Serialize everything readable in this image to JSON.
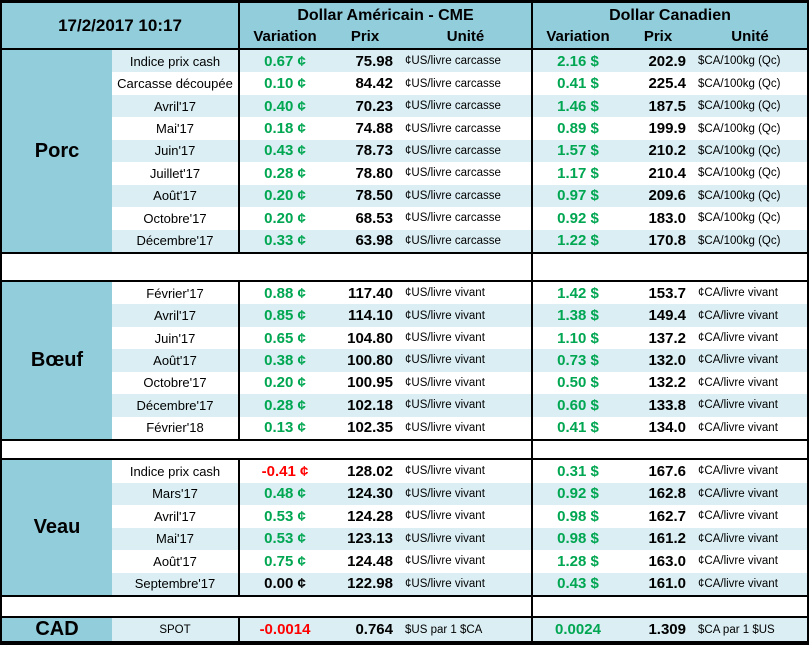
{
  "header": {
    "date": "17/2/2017 10:17",
    "us": {
      "title": "Dollar Américain - CME",
      "variation": "Variation",
      "prix": "Prix",
      "unite": "Unité"
    },
    "ca": {
      "title": "Dollar Canadien",
      "variation": "Variation",
      "prix": "Prix",
      "unite": "Unité"
    }
  },
  "palette": {
    "header_bg": "#92CDDC",
    "stripe_bg": "#DAEEF3",
    "positive_green": "#00A651",
    "negative_red": "#FF0000",
    "neutral_black": "#000000"
  },
  "sections": [
    {
      "category": "Porc",
      "rows": [
        {
          "label": "Indice prix cash",
          "us_variation": "0.67 ¢",
          "us_variation_color": "#00A651",
          "us_price": "75.98",
          "us_unit": "¢US/livre carcasse",
          "ca_variation": "2.16 $",
          "ca_variation_color": "#00A651",
          "ca_price": "202.9",
          "ca_unit": "$CA/100kg (Qc)"
        },
        {
          "label": "Carcasse découpée",
          "us_variation": "0.10 ¢",
          "us_variation_color": "#00A651",
          "us_price": "84.42",
          "us_unit": "¢US/livre carcasse",
          "ca_variation": "0.41 $",
          "ca_variation_color": "#00A651",
          "ca_price": "225.4",
          "ca_unit": "$CA/100kg (Qc)"
        },
        {
          "label": "Avril'17",
          "us_variation": "0.40 ¢",
          "us_variation_color": "#00A651",
          "us_price": "70.23",
          "us_unit": "¢US/livre carcasse",
          "ca_variation": "1.46 $",
          "ca_variation_color": "#00A651",
          "ca_price": "187.5",
          "ca_unit": "$CA/100kg (Qc)"
        },
        {
          "label": "Mai'17",
          "us_variation": "0.18 ¢",
          "us_variation_color": "#00A651",
          "us_price": "74.88",
          "us_unit": "¢US/livre carcasse",
          "ca_variation": "0.89 $",
          "ca_variation_color": "#00A651",
          "ca_price": "199.9",
          "ca_unit": "$CA/100kg (Qc)"
        },
        {
          "label": "Juin'17",
          "us_variation": "0.43 ¢",
          "us_variation_color": "#00A651",
          "us_price": "78.73",
          "us_unit": "¢US/livre carcasse",
          "ca_variation": "1.57 $",
          "ca_variation_color": "#00A651",
          "ca_price": "210.2",
          "ca_unit": "$CA/100kg (Qc)"
        },
        {
          "label": "Juillet'17",
          "us_variation": "0.28 ¢",
          "us_variation_color": "#00A651",
          "us_price": "78.80",
          "us_unit": "¢US/livre carcasse",
          "ca_variation": "1.17 $",
          "ca_variation_color": "#00A651",
          "ca_price": "210.4",
          "ca_unit": "$CA/100kg (Qc)"
        },
        {
          "label": "Août'17",
          "us_variation": "0.20 ¢",
          "us_variation_color": "#00A651",
          "us_price": "78.50",
          "us_unit": "¢US/livre carcasse",
          "ca_variation": "0.97 $",
          "ca_variation_color": "#00A651",
          "ca_price": "209.6",
          "ca_unit": "$CA/100kg (Qc)"
        },
        {
          "label": "Octobre'17",
          "us_variation": "0.20 ¢",
          "us_variation_color": "#00A651",
          "us_price": "68.53",
          "us_unit": "¢US/livre carcasse",
          "ca_variation": "0.92 $",
          "ca_variation_color": "#00A651",
          "ca_price": "183.0",
          "ca_unit": "$CA/100kg (Qc)"
        },
        {
          "label": "Décembre'17",
          "us_variation": "0.33 ¢",
          "us_variation_color": "#00A651",
          "us_price": "63.98",
          "us_unit": "¢US/livre carcasse",
          "ca_variation": "1.22 $",
          "ca_variation_color": "#00A651",
          "ca_price": "170.8",
          "ca_unit": "$CA/100kg (Qc)"
        }
      ]
    },
    {
      "category": "Bœuf",
      "rows": [
        {
          "label": "Février'17",
          "us_variation": "0.88 ¢",
          "us_variation_color": "#00A651",
          "us_price": "117.40",
          "us_unit": "¢US/livre vivant",
          "ca_variation": "1.42 $",
          "ca_variation_color": "#00A651",
          "ca_price": "153.7",
          "ca_unit": "¢CA/livre vivant"
        },
        {
          "label": "Avril'17",
          "us_variation": "0.85 ¢",
          "us_variation_color": "#00A651",
          "us_price": "114.10",
          "us_unit": "¢US/livre vivant",
          "ca_variation": "1.38 $",
          "ca_variation_color": "#00A651",
          "ca_price": "149.4",
          "ca_unit": "¢CA/livre vivant"
        },
        {
          "label": "Juin'17",
          "us_variation": "0.65 ¢",
          "us_variation_color": "#00A651",
          "us_price": "104.80",
          "us_unit": "¢US/livre vivant",
          "ca_variation": "1.10 $",
          "ca_variation_color": "#00A651",
          "ca_price": "137.2",
          "ca_unit": "¢CA/livre vivant"
        },
        {
          "label": "Août'17",
          "us_variation": "0.38 ¢",
          "us_variation_color": "#00A651",
          "us_price": "100.80",
          "us_unit": "¢US/livre vivant",
          "ca_variation": "0.73 $",
          "ca_variation_color": "#00A651",
          "ca_price": "132.0",
          "ca_unit": "¢CA/livre vivant"
        },
        {
          "label": "Octobre'17",
          "us_variation": "0.20 ¢",
          "us_variation_color": "#00A651",
          "us_price": "100.95",
          "us_unit": "¢US/livre vivant",
          "ca_variation": "0.50 $",
          "ca_variation_color": "#00A651",
          "ca_price": "132.2",
          "ca_unit": "¢CA/livre vivant"
        },
        {
          "label": "Décembre'17",
          "us_variation": "0.28 ¢",
          "us_variation_color": "#00A651",
          "us_price": "102.18",
          "us_unit": "¢US/livre vivant",
          "ca_variation": "0.60 $",
          "ca_variation_color": "#00A651",
          "ca_price": "133.8",
          "ca_unit": "¢CA/livre vivant"
        },
        {
          "label": "Février'18",
          "us_variation": "0.13 ¢",
          "us_variation_color": "#00A651",
          "us_price": "102.35",
          "us_unit": "¢US/livre vivant",
          "ca_variation": "0.41 $",
          "ca_variation_color": "#00A651",
          "ca_price": "134.0",
          "ca_unit": "¢CA/livre vivant"
        }
      ]
    },
    {
      "category": "Veau",
      "rows": [
        {
          "label": "Indice prix cash",
          "us_variation": "-0.41 ¢",
          "us_variation_color": "#FF0000",
          "us_price": "128.02",
          "us_unit": "¢US/livre vivant",
          "ca_variation": "0.31 $",
          "ca_variation_color": "#00A651",
          "ca_price": "167.6",
          "ca_unit": "¢CA/livre vivant"
        },
        {
          "label": "Mars'17",
          "us_variation": "0.48 ¢",
          "us_variation_color": "#00A651",
          "us_price": "124.30",
          "us_unit": "¢US/livre vivant",
          "ca_variation": "0.92 $",
          "ca_variation_color": "#00A651",
          "ca_price": "162.8",
          "ca_unit": "¢CA/livre vivant"
        },
        {
          "label": "Avril'17",
          "us_variation": "0.53 ¢",
          "us_variation_color": "#00A651",
          "us_price": "124.28",
          "us_unit": "¢US/livre vivant",
          "ca_variation": "0.98 $",
          "ca_variation_color": "#00A651",
          "ca_price": "162.7",
          "ca_unit": "¢CA/livre vivant"
        },
        {
          "label": "Mai'17",
          "us_variation": "0.53 ¢",
          "us_variation_color": "#00A651",
          "us_price": "123.13",
          "us_unit": "¢US/livre vivant",
          "ca_variation": "0.98 $",
          "ca_variation_color": "#00A651",
          "ca_price": "161.2",
          "ca_unit": "¢CA/livre vivant"
        },
        {
          "label": "Août'17",
          "us_variation": "0.75 ¢",
          "us_variation_color": "#00A651",
          "us_price": "124.48",
          "us_unit": "¢US/livre vivant",
          "ca_variation": "1.28 $",
          "ca_variation_color": "#00A651",
          "ca_price": "163.0",
          "ca_unit": "¢CA/livre vivant"
        },
        {
          "label": "Septembre'17",
          "us_variation": "0.00 ¢",
          "us_variation_color": "#000000",
          "us_price": "122.98",
          "us_unit": "¢US/livre vivant",
          "ca_variation": "0.43 $",
          "ca_variation_color": "#00A651",
          "ca_price": "161.0",
          "ca_unit": "¢CA/livre vivant"
        }
      ]
    },
    {
      "category": "CAD",
      "rows": [
        {
          "label": "SPOT",
          "us_variation": "-0.0014",
          "us_variation_color": "#FF0000",
          "us_price": "0.764",
          "us_unit": "$US par 1 $CA",
          "ca_variation": "0.0024",
          "ca_variation_color": "#00A651",
          "ca_price": "1.309",
          "ca_unit": "$CA par 1 $US"
        }
      ]
    }
  ]
}
